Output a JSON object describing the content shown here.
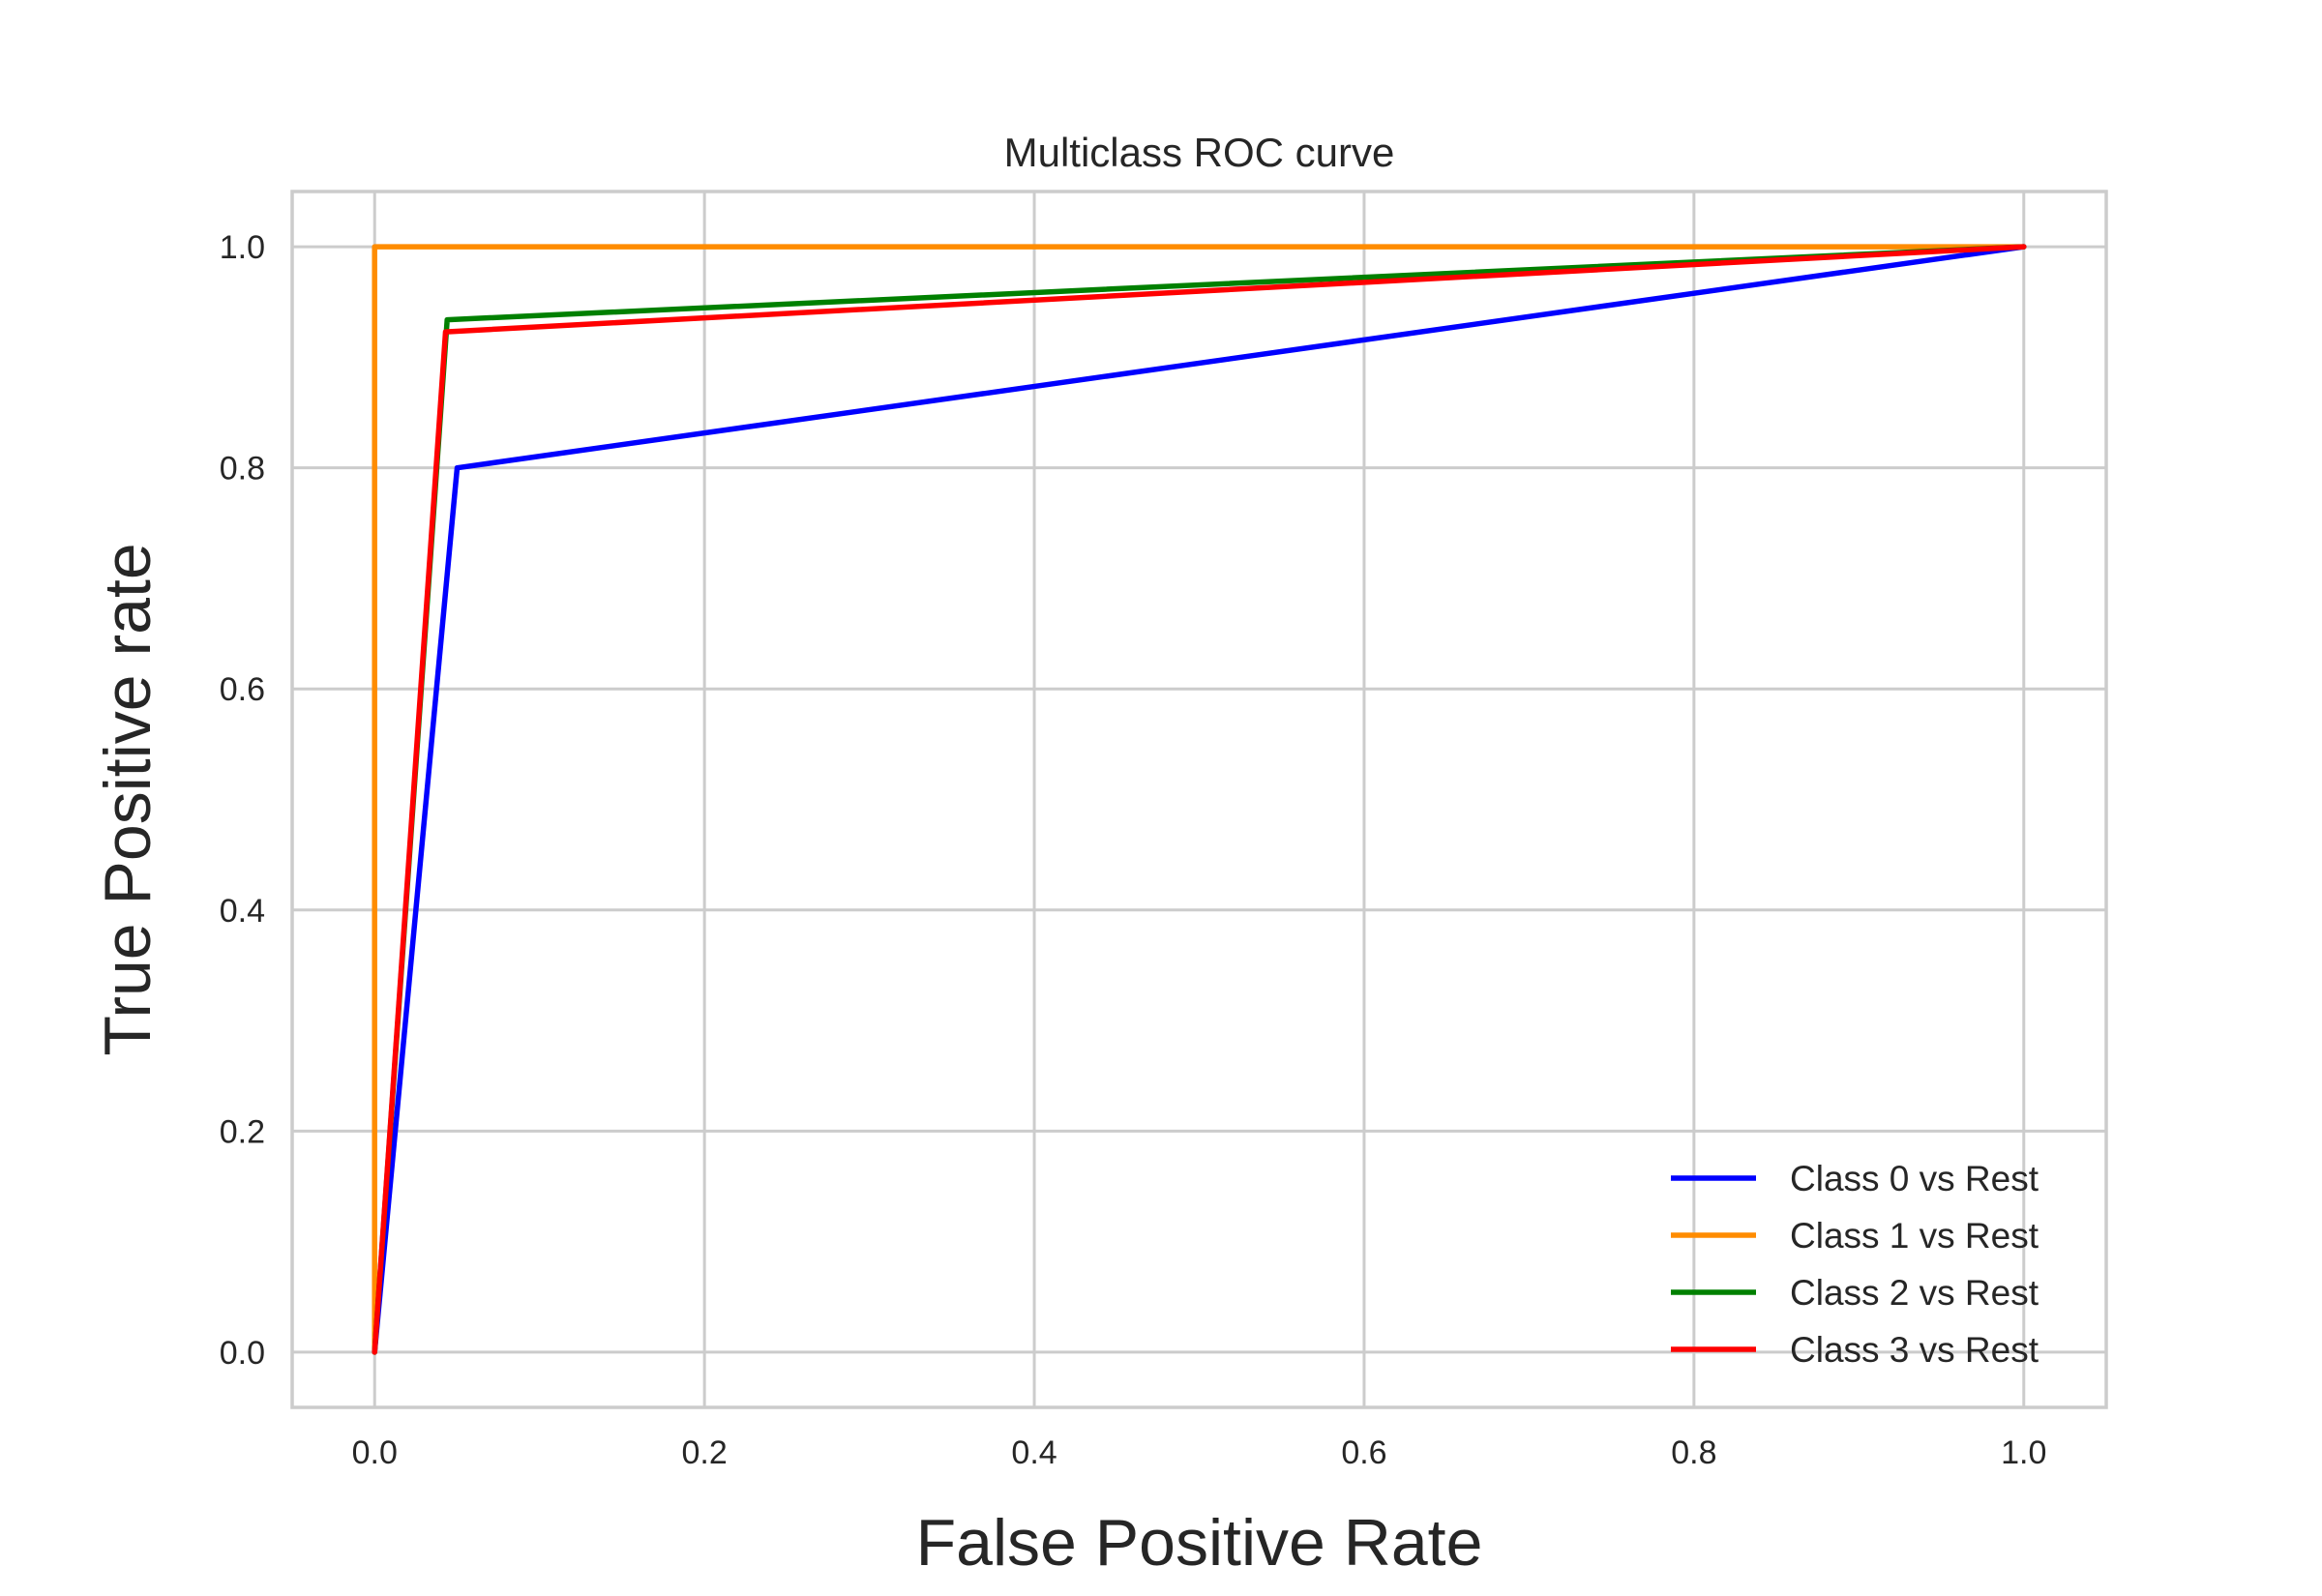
{
  "chart_data": {
    "type": "line",
    "title": "Multiclass ROC curve",
    "xlabel": "False Positive Rate",
    "ylabel": "True Positive rate",
    "xlim": [
      -0.05,
      1.05
    ],
    "ylim": [
      -0.05,
      1.05
    ],
    "xticks": [
      0.0,
      0.2,
      0.4,
      0.6,
      0.8,
      1.0
    ],
    "xtick_labels": [
      "0.0",
      "0.2",
      "0.4",
      "0.6",
      "0.8",
      "1.0"
    ],
    "yticks": [
      0.0,
      0.2,
      0.4,
      0.6,
      0.8,
      1.0
    ],
    "ytick_labels": [
      "0.0",
      "0.2",
      "0.4",
      "0.6",
      "0.8",
      "1.0"
    ],
    "grid": true,
    "legend_position": "lower-right",
    "series": [
      {
        "name": "Class 0 vs Rest",
        "color": "#0000ff",
        "x": [
          0.0,
          0.05,
          1.0
        ],
        "y": [
          0.0,
          0.8,
          1.0
        ]
      },
      {
        "name": "Class 1 vs Rest",
        "color": "#ff8c00",
        "x": [
          0.0,
          0.0,
          1.0
        ],
        "y": [
          0.0,
          1.0,
          1.0
        ]
      },
      {
        "name": "Class 2 vs Rest",
        "color": "#008000",
        "x": [
          0.0,
          0.044,
          1.0
        ],
        "y": [
          0.0,
          0.934,
          1.0
        ]
      },
      {
        "name": "Class 3 vs Rest",
        "color": "#ff0000",
        "x": [
          0.0,
          0.043,
          1.0
        ],
        "y": [
          0.0,
          0.923,
          1.0
        ]
      }
    ]
  }
}
